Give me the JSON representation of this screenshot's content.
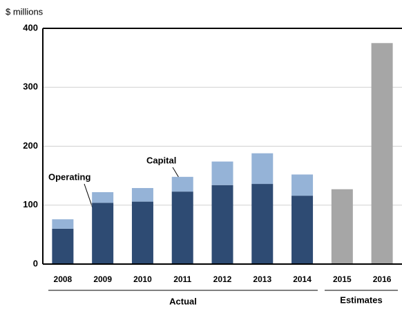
{
  "chart_data": {
    "type": "stacked-bar",
    "y_label": "$ millions",
    "categories": [
      "2008",
      "2009",
      "2010",
      "2011",
      "2012",
      "2013",
      "2014",
      "2015",
      "2016"
    ],
    "series": [
      {
        "name": "Operating",
        "color": "#2e4b73",
        "values": [
          60,
          104,
          106,
          123,
          134,
          136,
          116,
          null,
          null
        ]
      },
      {
        "name": "Capital",
        "color": "#95b3d7",
        "values": [
          16,
          18,
          23,
          25,
          40,
          52,
          36,
          null,
          null
        ]
      },
      {
        "name": "Estimates",
        "color": "#a6a6a6",
        "values": [
          null,
          null,
          null,
          null,
          null,
          null,
          null,
          127,
          375
        ]
      }
    ],
    "x_group_label": "Actual",
    "ylim": [
      0,
      400
    ],
    "yticks": [
      0,
      100,
      200,
      300,
      400
    ],
    "grid": true
  }
}
